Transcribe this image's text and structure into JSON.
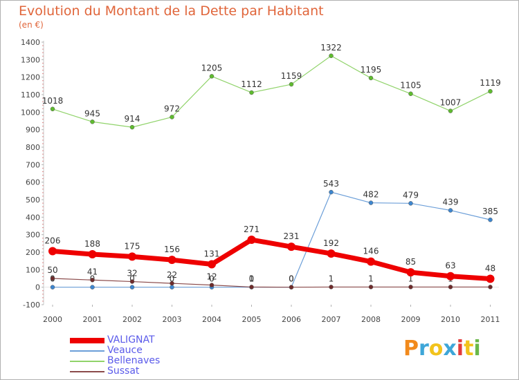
{
  "title": "Evolution du Montant de la Dette par Habitant",
  "subtitle": "(en €)",
  "logo": {
    "text": "Proxiti",
    "letter_colors": [
      "#f28a1c",
      "#3ea6d8",
      "#f2c31c",
      "#3ea6d8",
      "#e33b3b",
      "#f2c31c",
      "#6ab84a"
    ]
  },
  "chart_data": {
    "type": "line",
    "x": [
      "2000",
      "2001",
      "2002",
      "2003",
      "2004",
      "2005",
      "2006",
      "2007",
      "2008",
      "2009",
      "2010",
      "2011"
    ],
    "ylim": [
      -100,
      1400
    ],
    "yticks": [
      -100,
      0,
      100,
      200,
      300,
      400,
      500,
      600,
      700,
      800,
      900,
      1000,
      1100,
      1200,
      1300,
      1400
    ],
    "grid": false,
    "legend_position": "bottom-left",
    "series": [
      {
        "name": "Bellenaves",
        "color": "#90d36a",
        "marker": "#5fbb2f",
        "values": [
          1018,
          945,
          914,
          972,
          1205,
          1112,
          1159,
          1322,
          1195,
          1105,
          1007,
          1119
        ],
        "labels": [
          "1018",
          "945",
          "914",
          "972",
          "1205",
          "1112",
          "1159",
          "1322",
          "1195",
          "1105",
          "1007",
          "1119"
        ]
      },
      {
        "name": "Veauce",
        "color": "#6b9ed8",
        "marker": "#3d86cf",
        "values": [
          0,
          0,
          0,
          0,
          0,
          0,
          0,
          543,
          482,
          479,
          439,
          385
        ],
        "labels": [
          "0",
          "0",
          "0",
          "0",
          "0",
          "0",
          "0",
          "543",
          "482",
          "479",
          "439",
          "385"
        ]
      },
      {
        "name": "Sussat",
        "color": "#8a4a4a",
        "marker": "#6e2b2b",
        "values": [
          50,
          41,
          32,
          22,
          12,
          1,
          0,
          1,
          1,
          1,
          1,
          1
        ],
        "labels": [
          "50",
          "41",
          "32",
          "22",
          "12",
          "1",
          "0",
          "1",
          "1",
          "1",
          "1",
          "1"
        ]
      },
      {
        "name": "VALIGNAT",
        "color": "#ee0000",
        "marker": "#ee0000",
        "values": [
          206,
          188,
          175,
          156,
          131,
          271,
          231,
          192,
          146,
          85,
          63,
          48
        ],
        "labels": [
          "206",
          "188",
          "175",
          "156",
          "131",
          "271",
          "231",
          "192",
          "146",
          "85",
          "63",
          "48"
        ]
      }
    ],
    "legend": [
      "VALIGNAT",
      "Veauce",
      "Bellenaves",
      "Sussat"
    ]
  }
}
